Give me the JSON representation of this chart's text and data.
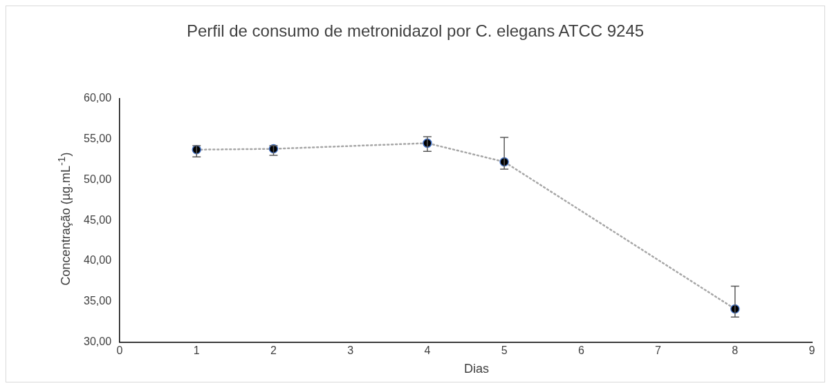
{
  "chart_data": {
    "type": "line",
    "title": "Perfil de consumo de metronidazol por C. elegans ATCC 9245",
    "xlabel": "Dias",
    "ylabel": "Concentração (µg.mL$^{-1}$)",
    "x": [
      1,
      2,
      4,
      5,
      8
    ],
    "series": [
      {
        "color": "#a6a6a6",
        "values": [
          53.7,
          53.8,
          54.5,
          52.2,
          34.1
        ],
        "errors": [
          [
            52.8,
            54.2
          ],
          [
            53.0,
            54.2
          ],
          [
            53.5,
            55.3
          ],
          [
            51.3,
            55.2
          ],
          [
            33.1,
            36.9
          ]
        ]
      }
    ],
    "xlim": [
      0,
      9
    ],
    "xticks": [
      0,
      1,
      2,
      3,
      4,
      5,
      6,
      7,
      8,
      9
    ],
    "ylim": [
      30,
      60
    ],
    "yticks": [
      {
        "value": 30,
        "label": "30,00"
      },
      {
        "value": 35,
        "label": "35,00"
      },
      {
        "value": 40,
        "label": "40,00"
      },
      {
        "value": 45,
        "label": "45,00"
      },
      {
        "value": 50,
        "label": "50,00"
      },
      {
        "value": 55,
        "label": "55,00"
      },
      {
        "value": 60,
        "label": "60,00"
      }
    ],
    "grid": false,
    "legend": false,
    "marker": "circle",
    "line_style": "dotted"
  }
}
